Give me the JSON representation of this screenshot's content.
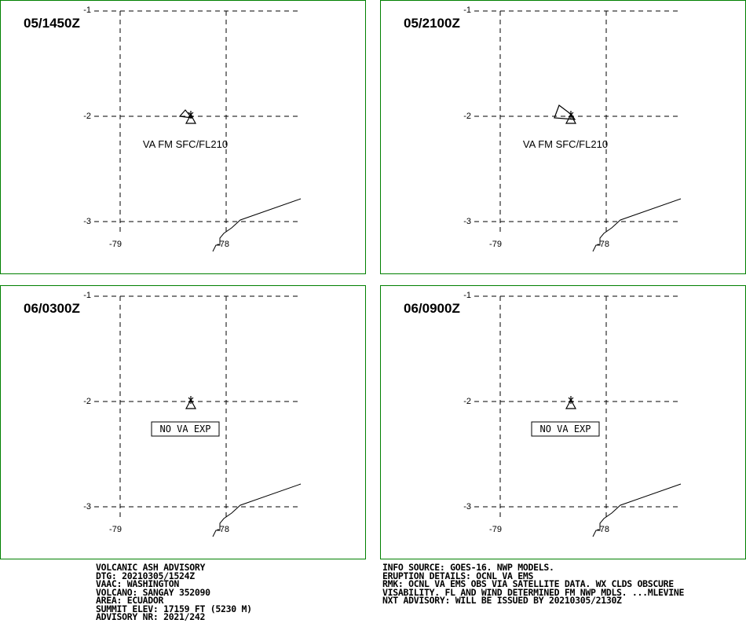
{
  "panels": [
    {
      "time": "05/1450Z",
      "label": "VA FM SFC/FL210",
      "boxed": false
    },
    {
      "time": "05/2100Z",
      "label": "VA FM SFC/FL210",
      "boxed": false
    },
    {
      "time": "06/0300Z",
      "label": "NO VA EXP",
      "boxed": true
    },
    {
      "time": "06/0900Z",
      "label": "NO VA EXP",
      "boxed": true
    }
  ],
  "axes": {
    "lat_labels": [
      "-1",
      "-2",
      "-3"
    ],
    "lon_labels": [
      "-79",
      "-78"
    ]
  },
  "advisory_left": [
    "VOLCANIC ASH ADVISORY",
    "DTG: 20210305/1524Z",
    "VAAC: WASHINGTON",
    "VOLCANO: SANGAY 352090",
    "AREA: ECUADOR",
    "SUMMIT ELEV: 17159 FT (5230 M)",
    "ADVISORY NR: 2021/242"
  ],
  "advisory_right": [
    "INFO SOURCE: GOES-16. NWP MODELS.",
    "ERUPTION DETAILS: OCNL VA EMS",
    "RMK: OCNL VA EMS OBS VIA SATELLITE DATA. WX CLDS OBSCURE",
    "VISABILITY. FL AND WIND DETERMINED FM NWP MDLS. ...MLEVINE",
    "NXT ADVISORY: WILL BE ISSUED BY 20210305/2130Z"
  ],
  "colors": {
    "frame": "#008000",
    "ink": "#000000"
  }
}
